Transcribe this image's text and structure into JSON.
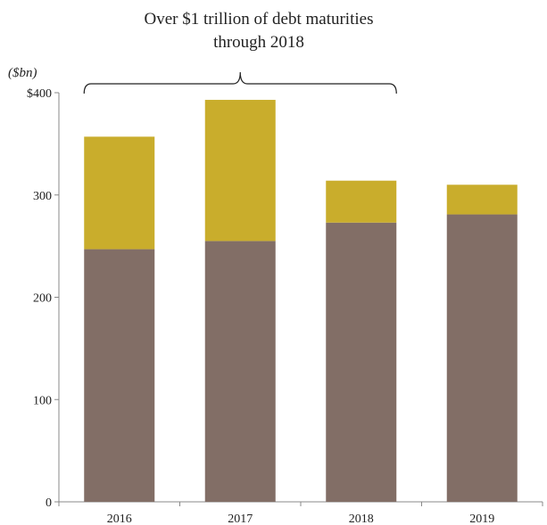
{
  "chart_data": {
    "type": "bar",
    "stacked": true,
    "categories": [
      "2016",
      "2017",
      "2018",
      "2019"
    ],
    "series": [
      {
        "values": [
          247,
          255,
          273,
          281
        ],
        "color": "#826e66"
      },
      {
        "values": [
          110,
          138,
          41,
          29
        ],
        "color": "#c9ad2c"
      }
    ],
    "totals": [
      357,
      393,
      314,
      310
    ],
    "ylabel": "($bn)",
    "ylim": [
      0,
      400
    ],
    "yticks": [
      0,
      100,
      200,
      300,
      400
    ],
    "ytick_labels": [
      "0",
      "100",
      "200",
      "300",
      "$400"
    ],
    "grid": false,
    "legend": "none",
    "annotation": {
      "lines": [
        "Over $1 trillion of debt maturities",
        "through 2018"
      ],
      "spans": [
        "2016",
        "2018"
      ]
    }
  }
}
